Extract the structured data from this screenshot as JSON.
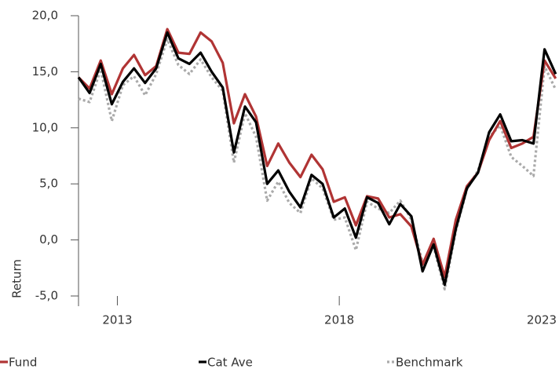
{
  "chart_data": {
    "type": "line",
    "y_label": "Return",
    "x": [
      2012.125,
      2012.375,
      2012.625,
      2012.875,
      2013.125,
      2013.375,
      2013.625,
      2013.875,
      2014.125,
      2014.375,
      2014.625,
      2014.875,
      2015.125,
      2015.375,
      2015.625,
      2015.875,
      2016.125,
      2016.375,
      2016.625,
      2016.875,
      2017.125,
      2017.375,
      2017.625,
      2017.875,
      2018.125,
      2018.375,
      2018.625,
      2018.875,
      2019.125,
      2019.375,
      2019.625,
      2019.875,
      2020.125,
      2020.375,
      2020.625,
      2020.875,
      2021.125,
      2021.375,
      2021.625,
      2021.875,
      2022.125,
      2022.375,
      2022.625,
      2022.875
    ],
    "series": [
      {
        "name": "Fund",
        "color": "#b03434",
        "dash": "solid",
        "values": [
          14.5,
          13.5,
          16.0,
          13.0,
          15.3,
          16.5,
          14.7,
          15.5,
          18.8,
          16.7,
          16.6,
          18.5,
          17.7,
          15.8,
          10.4,
          13.0,
          11.0,
          6.6,
          8.6,
          6.9,
          5.6,
          7.6,
          6.3,
          3.4,
          3.8,
          1.3,
          3.9,
          3.7,
          2.0,
          2.3,
          1.2,
          -2.2,
          0.1,
          -3.3,
          1.8,
          4.8,
          6.0,
          8.9,
          10.6,
          8.2,
          8.6,
          9.2,
          16.0,
          14.4
        ]
      },
      {
        "name": "Cat Ave",
        "color": "#000000",
        "dash": "solid",
        "values": [
          14.5,
          13.1,
          15.7,
          12.1,
          14.1,
          15.3,
          14.0,
          15.3,
          18.5,
          16.2,
          15.7,
          16.7,
          15.0,
          13.6,
          7.8,
          11.9,
          10.5,
          5.0,
          6.2,
          4.3,
          2.9,
          5.8,
          5.0,
          2.0,
          2.8,
          0.2,
          3.8,
          3.3,
          1.4,
          3.2,
          2.1,
          -2.8,
          -0.4,
          -4.0,
          1.0,
          4.6,
          6.0,
          9.6,
          11.2,
          8.8,
          8.9,
          8.6,
          17.0,
          14.8
        ]
      },
      {
        "name": "Benchmark",
        "color": "#aaaaaa",
        "dash": "dotted",
        "values": [
          12.6,
          12.3,
          15.2,
          10.6,
          13.8,
          14.6,
          12.9,
          14.8,
          17.9,
          15.6,
          14.8,
          16.1,
          14.5,
          13.3,
          6.9,
          11.3,
          9.2,
          3.5,
          5.2,
          3.3,
          2.4,
          5.5,
          4.6,
          1.8,
          2.0,
          -0.9,
          3.4,
          2.8,
          2.4,
          3.5,
          1.8,
          -2.0,
          -0.6,
          -4.4,
          0.8,
          4.5,
          6.2,
          9.2,
          10.2,
          7.4,
          6.6,
          5.7,
          15.5,
          13.4
        ]
      }
    ],
    "xlim": [
      2012.125,
      2022.95
    ],
    "xticks": [
      2013,
      2018,
      2023
    ],
    "ylim": [
      -5,
      20
    ],
    "yticks": [
      {
        "value": -5,
        "label": "-5,0"
      },
      {
        "value": 0,
        "label": "0,0"
      },
      {
        "value": 5,
        "label": "5,0"
      },
      {
        "value": 10,
        "label": "10,0"
      },
      {
        "value": 15,
        "label": "15,0"
      },
      {
        "value": 20,
        "label": "20,0"
      }
    ],
    "grid": false,
    "legend": "bottom"
  }
}
